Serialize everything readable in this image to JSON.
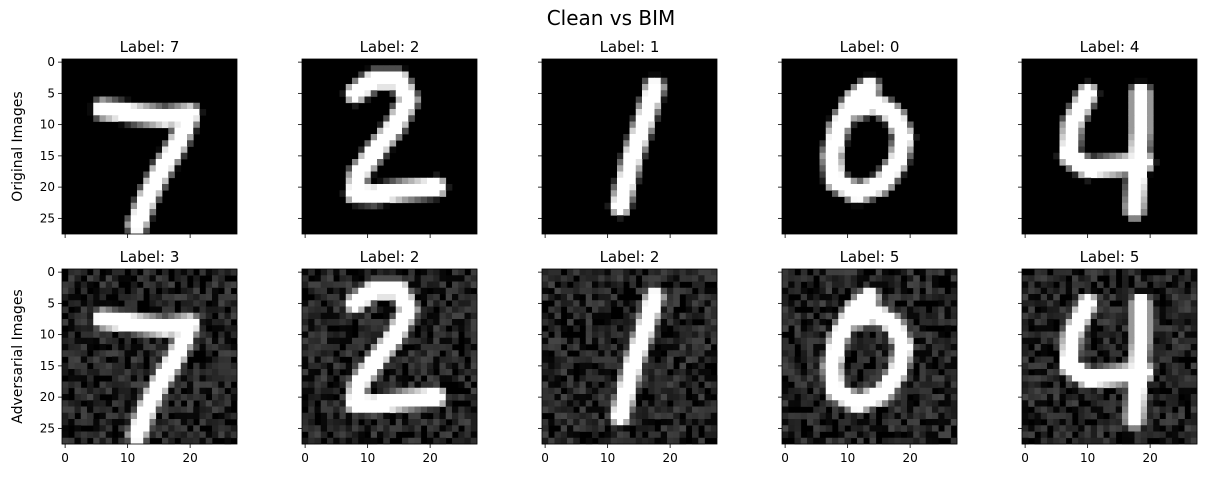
{
  "chart_data": {
    "type": "image-grid",
    "title": "Clean vs BIM",
    "rows": [
      {
        "ylabel": "Original Images",
        "titles": [
          "Label: 7",
          "Label: 2",
          "Label: 1",
          "Label: 0",
          "Label: 4"
        ],
        "noise": 0
      },
      {
        "ylabel": "Adversarial Images",
        "titles": [
          "Label: 3",
          "Label: 2",
          "Label: 2",
          "Label: 5",
          "Label: 5"
        ],
        "noise": 0.17
      }
    ],
    "digits": [
      "7",
      "2",
      "1",
      "0",
      "4"
    ],
    "image_size": [
      28,
      28
    ],
    "colormap": "gray",
    "x_ticks": [
      0,
      10,
      20
    ],
    "y_ticks": [
      0,
      5,
      10,
      15,
      20,
      25
    ],
    "xlim": [
      -0.5,
      27.5
    ],
    "ylim": [
      27.5,
      -0.5
    ],
    "sharey": true,
    "sharex": true
  }
}
